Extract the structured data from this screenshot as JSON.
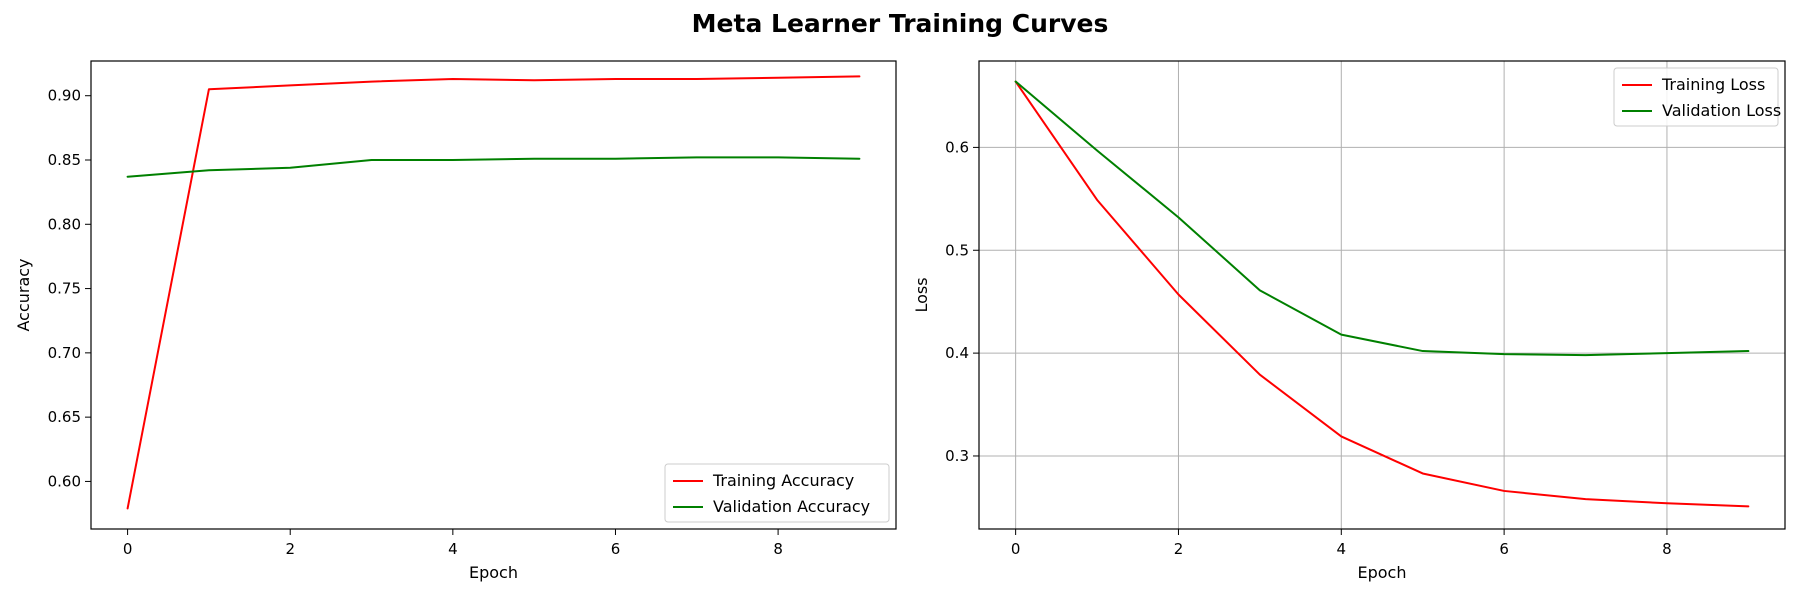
{
  "figure": {
    "title": "Meta Learner Training Curves"
  },
  "chart_data": [
    {
      "type": "line",
      "xlabel": "Epoch",
      "ylabel": "Accuracy",
      "x": [
        0,
        1,
        2,
        3,
        4,
        5,
        6,
        7,
        8,
        9
      ],
      "xlim": [
        -0.45,
        9.45
      ],
      "ylim": [
        0.563,
        0.927
      ],
      "xticks": [
        0,
        2,
        4,
        6,
        8
      ],
      "yticks": [
        0.6,
        0.65,
        0.7,
        0.75,
        0.8,
        0.85,
        0.9
      ],
      "ytick_labels": [
        "0.60",
        "0.65",
        "0.70",
        "0.75",
        "0.80",
        "0.85",
        "0.90"
      ],
      "grid": false,
      "legend_position": "lower right",
      "series": [
        {
          "name": "Training Accuracy",
          "color": "#ff0000",
          "values": [
            0.579,
            0.905,
            0.908,
            0.911,
            0.913,
            0.912,
            0.913,
            0.913,
            0.914,
            0.915
          ]
        },
        {
          "name": "Validation Accuracy",
          "color": "#008000",
          "values": [
            0.837,
            0.842,
            0.844,
            0.85,
            0.85,
            0.851,
            0.851,
            0.852,
            0.852,
            0.851
          ]
        }
      ]
    },
    {
      "type": "line",
      "xlabel": "Epoch",
      "ylabel": "Loss",
      "x": [
        0,
        1,
        2,
        3,
        4,
        5,
        6,
        7,
        8,
        9
      ],
      "xlim": [
        -0.45,
        9.45
      ],
      "ylim": [
        0.229,
        0.684
      ],
      "xticks": [
        0,
        2,
        4,
        6,
        8
      ],
      "yticks": [
        0.3,
        0.4,
        0.5,
        0.6
      ],
      "ytick_labels": [
        "0.3",
        "0.4",
        "0.5",
        "0.6"
      ],
      "grid": true,
      "legend_position": "upper right",
      "series": [
        {
          "name": "Training Loss",
          "color": "#ff0000",
          "values": [
            0.664,
            0.549,
            0.457,
            0.379,
            0.319,
            0.283,
            0.266,
            0.258,
            0.254,
            0.251
          ]
        },
        {
          "name": "Validation Loss",
          "color": "#008000",
          "values": [
            0.664,
            0.597,
            0.532,
            0.461,
            0.418,
            0.402,
            0.399,
            0.398,
            0.4,
            0.402
          ]
        }
      ]
    }
  ]
}
